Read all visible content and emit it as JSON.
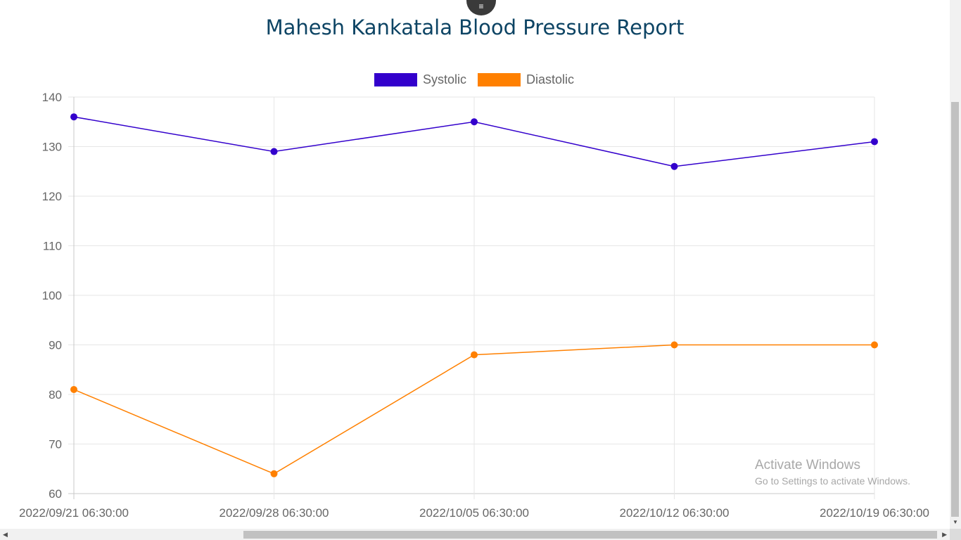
{
  "menu": {
    "icon": "hamburger-menu-icon",
    "glyph": "≡"
  },
  "page": {
    "title": "Mahesh Kankatala Blood Pressure Report"
  },
  "chart_data": {
    "type": "line",
    "title": "Mahesh Kankatala Blood Pressure Report",
    "categories": [
      "2022/09/21 06:30:00",
      "2022/09/28 06:30:00",
      "2022/10/05 06:30:00",
      "2022/10/12 06:30:00",
      "2022/10/19 06:30:00"
    ],
    "series": [
      {
        "name": "Systolic",
        "color": "#3300cc",
        "values": [
          136,
          129,
          135,
          126,
          131
        ]
      },
      {
        "name": "Diastolic",
        "color": "#ff8000",
        "values": [
          81,
          64,
          88,
          90,
          90
        ]
      }
    ],
    "ylim": [
      60,
      140
    ],
    "yticks": [
      60,
      70,
      80,
      90,
      100,
      110,
      120,
      130,
      140
    ],
    "grid": true,
    "legend": "top-center"
  },
  "watermark": {
    "line1": "Activate Windows",
    "line2": "Go to Settings to activate Windows."
  },
  "scrollbars": {
    "left_arrow": "◀",
    "right_arrow": "▶",
    "down_arrow": "▼"
  }
}
